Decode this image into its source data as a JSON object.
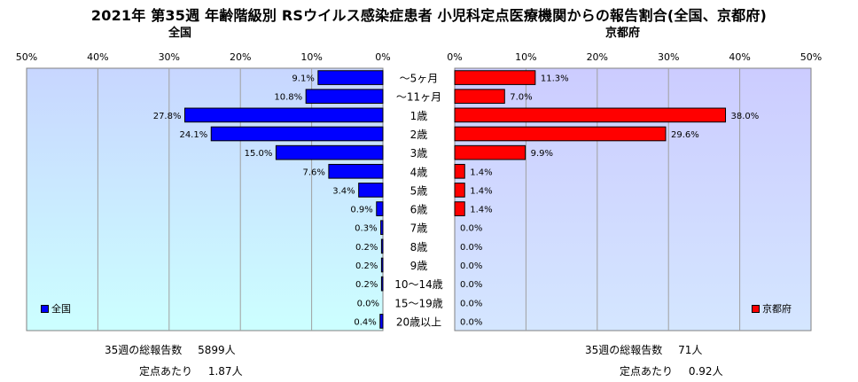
{
  "title": "2021年 第35週 年齢階級別 RSウイルス感染症患者 小児科定点医療機関からの報告割合(全国、京都府)",
  "colors": {
    "national": "#0000ff",
    "kyoto": "#ff0000",
    "plot_bg_national": "#ccffff",
    "plot_bg_kyoto": "#ccccff"
  },
  "chart_data": [
    {
      "type": "bar",
      "orientation": "horizontal",
      "title": "全国",
      "categories": [
        "～5ヶ月",
        "～11ヶ月",
        "1歳",
        "2歳",
        "3歳",
        "4歳",
        "5歳",
        "6歳",
        "7歳",
        "8歳",
        "9歳",
        "10～14歳",
        "15～19歳",
        "20歳以上"
      ],
      "series": [
        {
          "name": "全国",
          "values": [
            9.1,
            10.8,
            27.8,
            24.1,
            15.0,
            7.6,
            3.4,
            0.9,
            0.3,
            0.2,
            0.2,
            0.2,
            0.0,
            0.4
          ]
        }
      ],
      "value_labels": [
        "9.1%",
        "10.8%",
        "27.8%",
        "24.1%",
        "15.0%",
        "7.6%",
        "3.4%",
        "0.9%",
        "0.3%",
        "0.2%",
        "0.2%",
        "0.2%",
        "0.0%",
        "0.4%"
      ],
      "xlim": [
        0,
        50
      ],
      "x_reversed": true,
      "x_ticks": [
        "50%",
        "40%",
        "30%",
        "20%",
        "10%",
        "0%"
      ],
      "grid": true,
      "legend": "bottom-left"
    },
    {
      "type": "bar",
      "orientation": "horizontal",
      "title": "京都府",
      "categories": [
        "～5ヶ月",
        "～11ヶ月",
        "1歳",
        "2歳",
        "3歳",
        "4歳",
        "5歳",
        "6歳",
        "7歳",
        "8歳",
        "9歳",
        "10～14歳",
        "15～19歳",
        "20歳以上"
      ],
      "series": [
        {
          "name": "京都府",
          "values": [
            11.3,
            7.0,
            38.0,
            29.6,
            9.9,
            1.4,
            1.4,
            1.4,
            0.0,
            0.0,
            0.0,
            0.0,
            0.0,
            0.0
          ]
        }
      ],
      "value_labels": [
        "11.3%",
        "7.0%",
        "38.0%",
        "29.6%",
        "9.9%",
        "1.4%",
        "1.4%",
        "1.4%",
        "0.0%",
        "0.0%",
        "0.0%",
        "0.0%",
        "0.0%",
        "0.0%"
      ],
      "xlim": [
        0,
        50
      ],
      "x_reversed": false,
      "x_ticks": [
        "0%",
        "10%",
        "20%",
        "30%",
        "40%",
        "50%"
      ],
      "grid": true,
      "legend": "bottom-right"
    }
  ],
  "stats": {
    "national": {
      "total_label": "35週の総報告数",
      "total_value": "5899人",
      "per_label": "定点あたり",
      "per_value": "1.87人"
    },
    "kyoto": {
      "total_label": "35週の総報告数",
      "total_value": "71人",
      "per_label": "定点あたり",
      "per_value": "0.92人"
    }
  }
}
